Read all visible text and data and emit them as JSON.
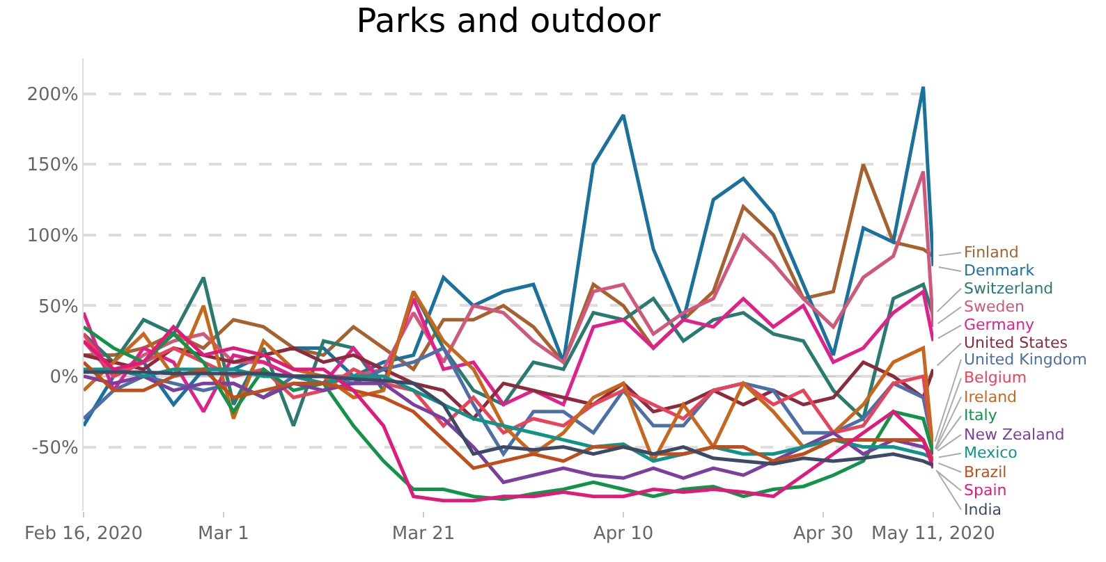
{
  "chart_data": {
    "type": "line",
    "title": "Parks and outdoor",
    "x": [
      "2020-02-16",
      "2020-02-19",
      "2020-02-22",
      "2020-02-25",
      "2020-02-28",
      "2020-03-02",
      "2020-03-05",
      "2020-03-08",
      "2020-03-11",
      "2020-03-14",
      "2020-03-17",
      "2020-03-20",
      "2020-03-23",
      "2020-03-26",
      "2020-03-29",
      "2020-04-01",
      "2020-04-04",
      "2020-04-07",
      "2020-04-10",
      "2020-04-13",
      "2020-04-16",
      "2020-04-19",
      "2020-04-22",
      "2020-04-25",
      "2020-04-28",
      "2020-05-01",
      "2020-05-04",
      "2020-05-07",
      "2020-05-10",
      "2020-05-11"
    ],
    "series": [
      {
        "name": "Finland",
        "color": "#a6612f",
        "values": [
          15,
          15,
          20,
          30,
          20,
          40,
          35,
          20,
          15,
          35,
          20,
          5,
          40,
          40,
          50,
          35,
          10,
          65,
          50,
          20,
          40,
          60,
          120,
          100,
          55,
          60,
          150,
          95,
          90,
          85
        ]
      },
      {
        "name": "Denmark",
        "color": "#19719e",
        "values": [
          -35,
          0,
          10,
          -20,
          5,
          5,
          15,
          20,
          20,
          0,
          10,
          15,
          70,
          50,
          60,
          65,
          10,
          150,
          185,
          90,
          40,
          125,
          140,
          115,
          65,
          15,
          105,
          95,
          205,
          78
        ]
      },
      {
        "name": "Switzerland",
        "color": "#2a7b6f",
        "values": [
          30,
          10,
          40,
          30,
          70,
          -20,
          20,
          -35,
          25,
          20,
          -10,
          60,
          20,
          -10,
          -20,
          10,
          5,
          45,
          40,
          55,
          25,
          40,
          45,
          30,
          25,
          -10,
          -30,
          55,
          65,
          43
        ]
      },
      {
        "name": "Sweden",
        "color": "#d0587a",
        "values": [
          25,
          0,
          15,
          25,
          30,
          10,
          10,
          0,
          0,
          0,
          5,
          45,
          10,
          50,
          45,
          25,
          10,
          60,
          65,
          30,
          45,
          55,
          100,
          80,
          55,
          35,
          70,
          85,
          145,
          35
        ]
      },
      {
        "name": "Germany",
        "color": "#e0218a",
        "values": [
          45,
          -10,
          20,
          10,
          -25,
          15,
          10,
          0,
          -5,
          20,
          -5,
          55,
          5,
          10,
          -20,
          -10,
          -20,
          35,
          40,
          20,
          40,
          35,
          55,
          35,
          50,
          10,
          20,
          45,
          60,
          25
        ]
      },
      {
        "name": "United States",
        "color": "#8b2b3b",
        "values": [
          15,
          10,
          5,
          20,
          15,
          10,
          15,
          20,
          10,
          15,
          5,
          -5,
          -10,
          -30,
          -5,
          -10,
          -15,
          -20,
          -5,
          -25,
          -20,
          -10,
          -20,
          -10,
          -20,
          -15,
          10,
          0,
          -15,
          5
        ]
      },
      {
        "name": "United Kingdom",
        "color": "#4c6fa8",
        "values": [
          -30,
          -10,
          0,
          -5,
          -10,
          -5,
          -15,
          0,
          0,
          -5,
          5,
          10,
          20,
          -20,
          -55,
          -25,
          -25,
          -40,
          -10,
          -35,
          -35,
          -10,
          -5,
          -10,
          -40,
          -40,
          -30,
          -5,
          -15,
          -50
        ]
      },
      {
        "name": "Belgium",
        "color": "#e8435a",
        "values": [
          30,
          0,
          10,
          20,
          10,
          0,
          5,
          -15,
          -10,
          5,
          -5,
          -10,
          -35,
          -15,
          -40,
          -30,
          -35,
          -20,
          -10,
          -20,
          -30,
          -10,
          -5,
          -20,
          -10,
          -40,
          -35,
          -5,
          0,
          -55
        ]
      },
      {
        "name": "Ireland",
        "color": "#c8661b",
        "values": [
          -10,
          10,
          30,
          0,
          50,
          -30,
          25,
          5,
          0,
          -15,
          -10,
          60,
          25,
          5,
          -35,
          -55,
          -40,
          -15,
          -5,
          -60,
          -20,
          -50,
          -5,
          -25,
          -50,
          -40,
          -20,
          10,
          20,
          -55
        ]
      },
      {
        "name": "Italy",
        "color": "#12934a",
        "values": [
          35,
          20,
          10,
          30,
          10,
          -25,
          5,
          -10,
          -5,
          -35,
          -60,
          -80,
          -80,
          -85,
          -87,
          -83,
          -80,
          -75,
          -80,
          -85,
          -80,
          -78,
          -85,
          -80,
          -78,
          -70,
          -60,
          -25,
          -30,
          -55
        ]
      },
      {
        "name": "New Zealand",
        "color": "#7b3fa0",
        "values": [
          0,
          -5,
          0,
          -10,
          -5,
          -5,
          -15,
          -5,
          -10,
          -5,
          -5,
          -20,
          -30,
          -50,
          -75,
          -70,
          -65,
          -70,
          -72,
          -65,
          -72,
          -65,
          -70,
          -60,
          -50,
          -40,
          -55,
          -45,
          -50,
          -55
        ]
      },
      {
        "name": "Mexico",
        "color": "#0e9488",
        "values": [
          5,
          5,
          0,
          5,
          5,
          5,
          0,
          0,
          -5,
          0,
          0,
          -10,
          -20,
          -30,
          -35,
          -40,
          -45,
          -50,
          -48,
          -60,
          -55,
          -50,
          -55,
          -55,
          -50,
          -45,
          -50,
          -50,
          -55,
          -58
        ]
      },
      {
        "name": "Brazil",
        "color": "#c14e1a",
        "values": [
          10,
          -10,
          -10,
          0,
          5,
          -15,
          -10,
          -5,
          -5,
          -10,
          -15,
          -25,
          -45,
          -65,
          -60,
          -55,
          -60,
          -50,
          -50,
          -55,
          -55,
          -50,
          -50,
          -60,
          -55,
          -45,
          -45,
          -45,
          -45,
          -60
        ]
      },
      {
        "name": "Spain",
        "color": "#e01a7a",
        "values": [
          25,
          5,
          10,
          35,
          15,
          20,
          15,
          5,
          5,
          -10,
          -35,
          -85,
          -88,
          -88,
          -85,
          -85,
          -82,
          -85,
          -85,
          -80,
          -82,
          -80,
          -82,
          -85,
          -70,
          -55,
          -40,
          -25,
          -45,
          -65
        ]
      },
      {
        "name": "India",
        "color": "#3d4a66",
        "values": [
          3,
          3,
          3,
          2,
          2,
          2,
          2,
          0,
          0,
          -2,
          -3,
          -5,
          -20,
          -55,
          -50,
          -52,
          -50,
          -55,
          -50,
          -55,
          -50,
          -58,
          -60,
          -62,
          -58,
          -60,
          -58,
          -55,
          -60,
          -63
        ]
      }
    ],
    "xlim": [
      "2020-02-16",
      "2020-05-11"
    ],
    "xticks": [
      {
        "value": "2020-02-16",
        "label": "Feb 16, 2020"
      },
      {
        "value": "2020-03-01",
        "label": "Mar 1"
      },
      {
        "value": "2020-03-21",
        "label": "Mar 21"
      },
      {
        "value": "2020-04-10",
        "label": "Apr 10"
      },
      {
        "value": "2020-04-30",
        "label": "Apr 30"
      },
      {
        "value": "2020-05-11",
        "label": "May 11, 2020"
      }
    ],
    "ylim": [
      -95,
      225
    ],
    "yticks": [
      {
        "value": -50,
        "label": "-50%"
      },
      {
        "value": 0,
        "label": "0%"
      },
      {
        "value": 50,
        "label": "50%"
      },
      {
        "value": 100,
        "label": "100%"
      },
      {
        "value": 150,
        "label": "150%"
      },
      {
        "value": 200,
        "label": "200%"
      }
    ],
    "grid": "y",
    "ref_lines": [
      {
        "axis": "y",
        "value": 0,
        "color": "#c8c8c8"
      }
    ],
    "legend": false,
    "marker": "none",
    "line_style": "solid"
  }
}
